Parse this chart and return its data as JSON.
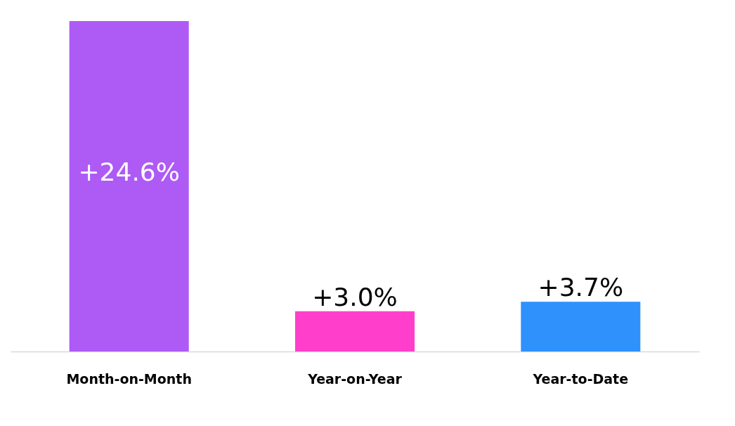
{
  "chart_data": {
    "type": "bar",
    "categories": [
      "Month-on-Month",
      "Year-on-Year",
      "Year-to-Date"
    ],
    "values": [
      24.6,
      3.0,
      3.7
    ],
    "colors": [
      "#ae5af5",
      "#ff3fcb",
      "#2f91fc"
    ],
    "value_labels": [
      "+24.6%",
      "+3.0%",
      "+3.7%"
    ]
  }
}
